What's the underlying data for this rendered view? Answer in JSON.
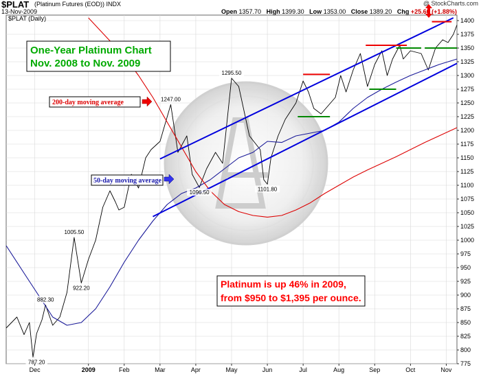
{
  "header": {
    "symbol": "$PLAT",
    "description": "(Platinum Futures (EOD))",
    "exchange": "INDX",
    "date": "13-Nov-2009",
    "brand": "@ StockCharts.com",
    "open_label": "Open",
    "open": "1357.70",
    "high_label": "High",
    "high": "1399.30",
    "low_label": "Low",
    "low": "1353.00",
    "close_label": "Close",
    "close": "1389.20",
    "chg_label": "Chg",
    "chg": "+25.60 (+1.88%)"
  },
  "colors": {
    "price": "#000000",
    "ma50": "#1a1a99",
    "ma200": "#dd0000",
    "channel": "#0000dd",
    "resistance": "#ee0000",
    "support": "#008800",
    "title_green": "#00aa00",
    "note_red": "#ff0000",
    "grid": "#d8d8d8"
  },
  "chart_data": {
    "type": "line",
    "legend_label": "$PLAT (Daily)",
    "ylim": [
      775,
      1410
    ],
    "y_ticks": [
      775,
      800,
      825,
      850,
      875,
      900,
      925,
      950,
      975,
      1000,
      1025,
      1050,
      1075,
      1100,
      1125,
      1150,
      1175,
      1200,
      1225,
      1250,
      1275,
      1300,
      1325,
      1350,
      1375,
      1400
    ],
    "x_labels": [
      "Dec",
      "2009",
      "Feb",
      "Mar",
      "Apr",
      "May",
      "Jun",
      "Jul",
      "Aug",
      "Sep",
      "Oct",
      "Nov"
    ],
    "x_label_pos": [
      0.5,
      2,
      3,
      4,
      5,
      6,
      7,
      8,
      9,
      10,
      11,
      12
    ],
    "x_range": [
      -0.3,
      12.3
    ],
    "series": [
      {
        "name": "$PLAT (Daily)",
        "kind": "price",
        "x": [
          -0.3,
          0.0,
          0.2,
          0.35,
          0.45,
          0.55,
          0.7,
          0.8,
          1.0,
          1.2,
          1.4,
          1.6,
          1.8,
          2.0,
          2.2,
          2.4,
          2.6,
          2.75,
          2.85,
          3.0,
          3.2,
          3.4,
          3.6,
          3.75,
          4.0,
          4.3,
          4.5,
          4.75,
          4.9,
          5.1,
          5.3,
          5.55,
          5.75,
          6.0,
          6.2,
          6.5,
          6.8,
          6.9,
          7.0,
          7.1,
          7.3,
          7.5,
          7.8,
          8.0,
          8.15,
          8.3,
          8.5,
          8.7,
          8.9,
          9.05,
          9.2,
          9.4,
          9.6,
          9.8,
          10.0,
          10.2,
          10.35,
          10.5,
          10.7,
          10.8,
          11.0,
          11.3,
          11.5,
          11.7,
          11.9,
          12.05,
          12.2,
          12.3
        ],
        "y": [
          840,
          860,
          828,
          850,
          787,
          830,
          855,
          882,
          845,
          860,
          905,
          1005,
          922,
          965,
          1000,
          1060,
          1090,
          1070,
          1055,
          1060,
          1120,
          1095,
          1150,
          1165,
          1180,
          1247,
          1160,
          1190,
          1120,
          1096,
          1130,
          1160,
          1140,
          1295,
          1280,
          1190,
          1165,
          1110,
          1102,
          1150,
          1190,
          1220,
          1250,
          1290,
          1270,
          1240,
          1230,
          1245,
          1260,
          1300,
          1270,
          1310,
          1340,
          1280,
          1320,
          1345,
          1300,
          1330,
          1355,
          1330,
          1345,
          1340,
          1310,
          1350,
          1365,
          1360,
          1375,
          1392
        ]
      },
      {
        "name": "50-day moving average",
        "kind": "ma50",
        "x": [
          -0.3,
          0.2,
          0.6,
          1.0,
          1.4,
          1.8,
          2.2,
          2.6,
          3.0,
          3.4,
          3.8,
          4.2,
          4.6,
          5.0,
          5.4,
          5.8,
          6.2,
          6.6,
          7.0,
          7.4,
          7.8,
          8.2,
          8.6,
          9.0,
          9.4,
          9.8,
          10.2,
          10.6,
          11.0,
          11.4,
          11.8,
          12.3
        ],
        "y": [
          990,
          940,
          900,
          860,
          845,
          850,
          875,
          915,
          960,
          1000,
          1035,
          1065,
          1085,
          1095,
          1110,
          1130,
          1150,
          1160,
          1180,
          1178,
          1190,
          1195,
          1200,
          1215,
          1240,
          1260,
          1275,
          1288,
          1300,
          1310,
          1320,
          1330
        ]
      },
      {
        "name": "200-day moving average",
        "kind": "ma200",
        "x": [
          2.0,
          2.5,
          3.0,
          3.4,
          3.8,
          4.2,
          4.6,
          5.0,
          5.4,
          5.8,
          6.2,
          6.6,
          7.0,
          7.4,
          7.8,
          8.2,
          8.6,
          9.0,
          9.4,
          9.8,
          10.2,
          10.6,
          11.0,
          11.4,
          11.8,
          12.3
        ],
        "y": [
          1405,
          1370,
          1335,
          1300,
          1260,
          1215,
          1170,
          1125,
          1090,
          1065,
          1052,
          1045,
          1042,
          1045,
          1055,
          1068,
          1085,
          1100,
          1115,
          1128,
          1140,
          1152,
          1165,
          1178,
          1190,
          1205
        ]
      }
    ],
    "trend_lines": [
      {
        "name": "upper channel",
        "x": [
          4.0,
          12.2
        ],
        "y": [
          1148,
          1405
        ]
      },
      {
        "name": "lower channel",
        "x": [
          3.8,
          12.3
        ],
        "y": [
          1043,
          1322
        ]
      }
    ],
    "resistance_lines": [
      {
        "x": [
          8.0,
          8.75
        ],
        "y": 1302
      },
      {
        "x": [
          9.75,
          10.9
        ],
        "y": 1355
      },
      {
        "x": [
          11.6,
          12.15
        ],
        "y": 1398
      }
    ],
    "support_lines": [
      {
        "x": [
          7.85,
          8.75
        ],
        "y": 1225
      },
      {
        "x": [
          9.85,
          10.6
        ],
        "y": 1275
      },
      {
        "x": [
          10.6,
          11.3
        ],
        "y": 1350
      },
      {
        "x": [
          11.4,
          12.3
        ],
        "y": 1350
      }
    ],
    "peak_labels": [
      {
        "text": "882.30",
        "x": 0.8,
        "y": 882,
        "pos": "above"
      },
      {
        "text": "787.20",
        "x": 0.55,
        "y": 787,
        "pos": "below"
      },
      {
        "text": "1005.50",
        "x": 1.6,
        "y": 1005,
        "pos": "above"
      },
      {
        "text": "922.20",
        "x": 1.8,
        "y": 922,
        "pos": "below"
      },
      {
        "text": "1247.00",
        "x": 4.3,
        "y": 1247,
        "pos": "above"
      },
      {
        "text": "1096.50",
        "x": 5.1,
        "y": 1096,
        "pos": "below"
      },
      {
        "text": "1295.50",
        "x": 6.0,
        "y": 1295,
        "pos": "above"
      },
      {
        "text": "1101.80",
        "x": 7.0,
        "y": 1102,
        "pos": "below"
      }
    ]
  },
  "annotations": {
    "title_line1": "One-Year Platinum Chart",
    "title_line2": "Nov. 2008 to Nov. 2009",
    "ma200_label": "200-day moving average",
    "ma50_label": "50-day moving average",
    "note_line1": "Platinum is up 46% in 2009,",
    "note_line2": "from $950 to $1,395 per ounce."
  }
}
